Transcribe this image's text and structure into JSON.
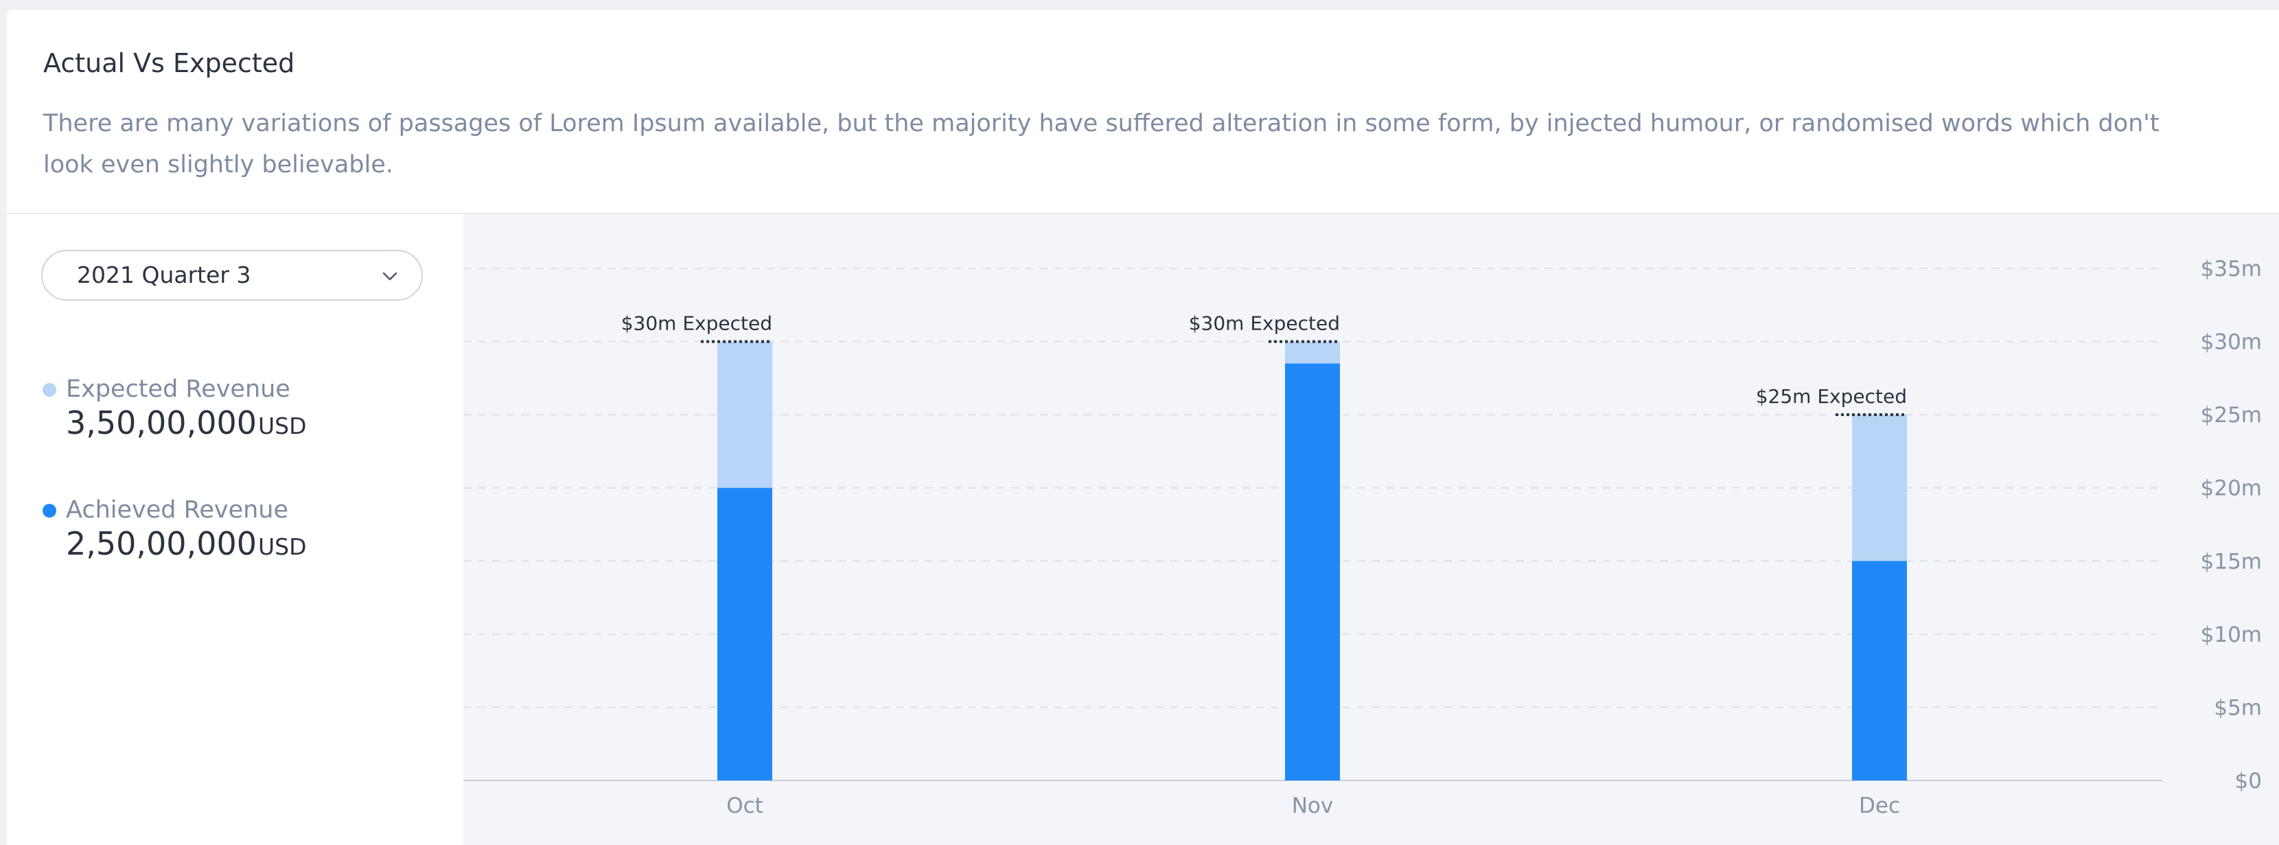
{
  "card": {
    "title": "Actual Vs Expected",
    "description": "There are many variations of passages of Lorem Ipsum available, but the majority have suffered alteration in some form, by injected humour, or randomised words which don't look even slightly believable."
  },
  "period_select": {
    "value": "2021 Quarter 3",
    "icon": "chevron-down-icon"
  },
  "legend": {
    "expected": {
      "label": "Expected Revenue",
      "value": "3,50,00,000",
      "unit": "USD",
      "color": "#b8d5f7"
    },
    "achieved": {
      "label": "Achieved Revenue",
      "value": "2,50,00,000",
      "unit": "USD",
      "color": "#1f88f6"
    }
  },
  "chart_data": {
    "type": "bar",
    "categories": [
      "Oct",
      "Nov",
      "Dec"
    ],
    "series": [
      {
        "name": "Achieved Revenue",
        "values": [
          20,
          28.5,
          15
        ],
        "color": "#1f88f6"
      },
      {
        "name": "Expected Revenue",
        "values": [
          30,
          30,
          25
        ],
        "color": "#b8d5f7"
      }
    ],
    "annotations": [
      "$30m Expected",
      "$30m Expected",
      "$25m Expected"
    ],
    "y_ticks": [
      "$0",
      "$5m",
      "$10m",
      "$15m",
      "$20m",
      "$25m",
      "$30m",
      "$35m"
    ],
    "y_tick_values": [
      0,
      5,
      10,
      15,
      20,
      25,
      30,
      35
    ],
    "ylim": [
      0,
      35
    ],
    "y_axis_position": "right",
    "grid": true,
    "grid_style": "dashed",
    "grid_color": "#dde2e8",
    "axis_color": "#c9ced6"
  }
}
